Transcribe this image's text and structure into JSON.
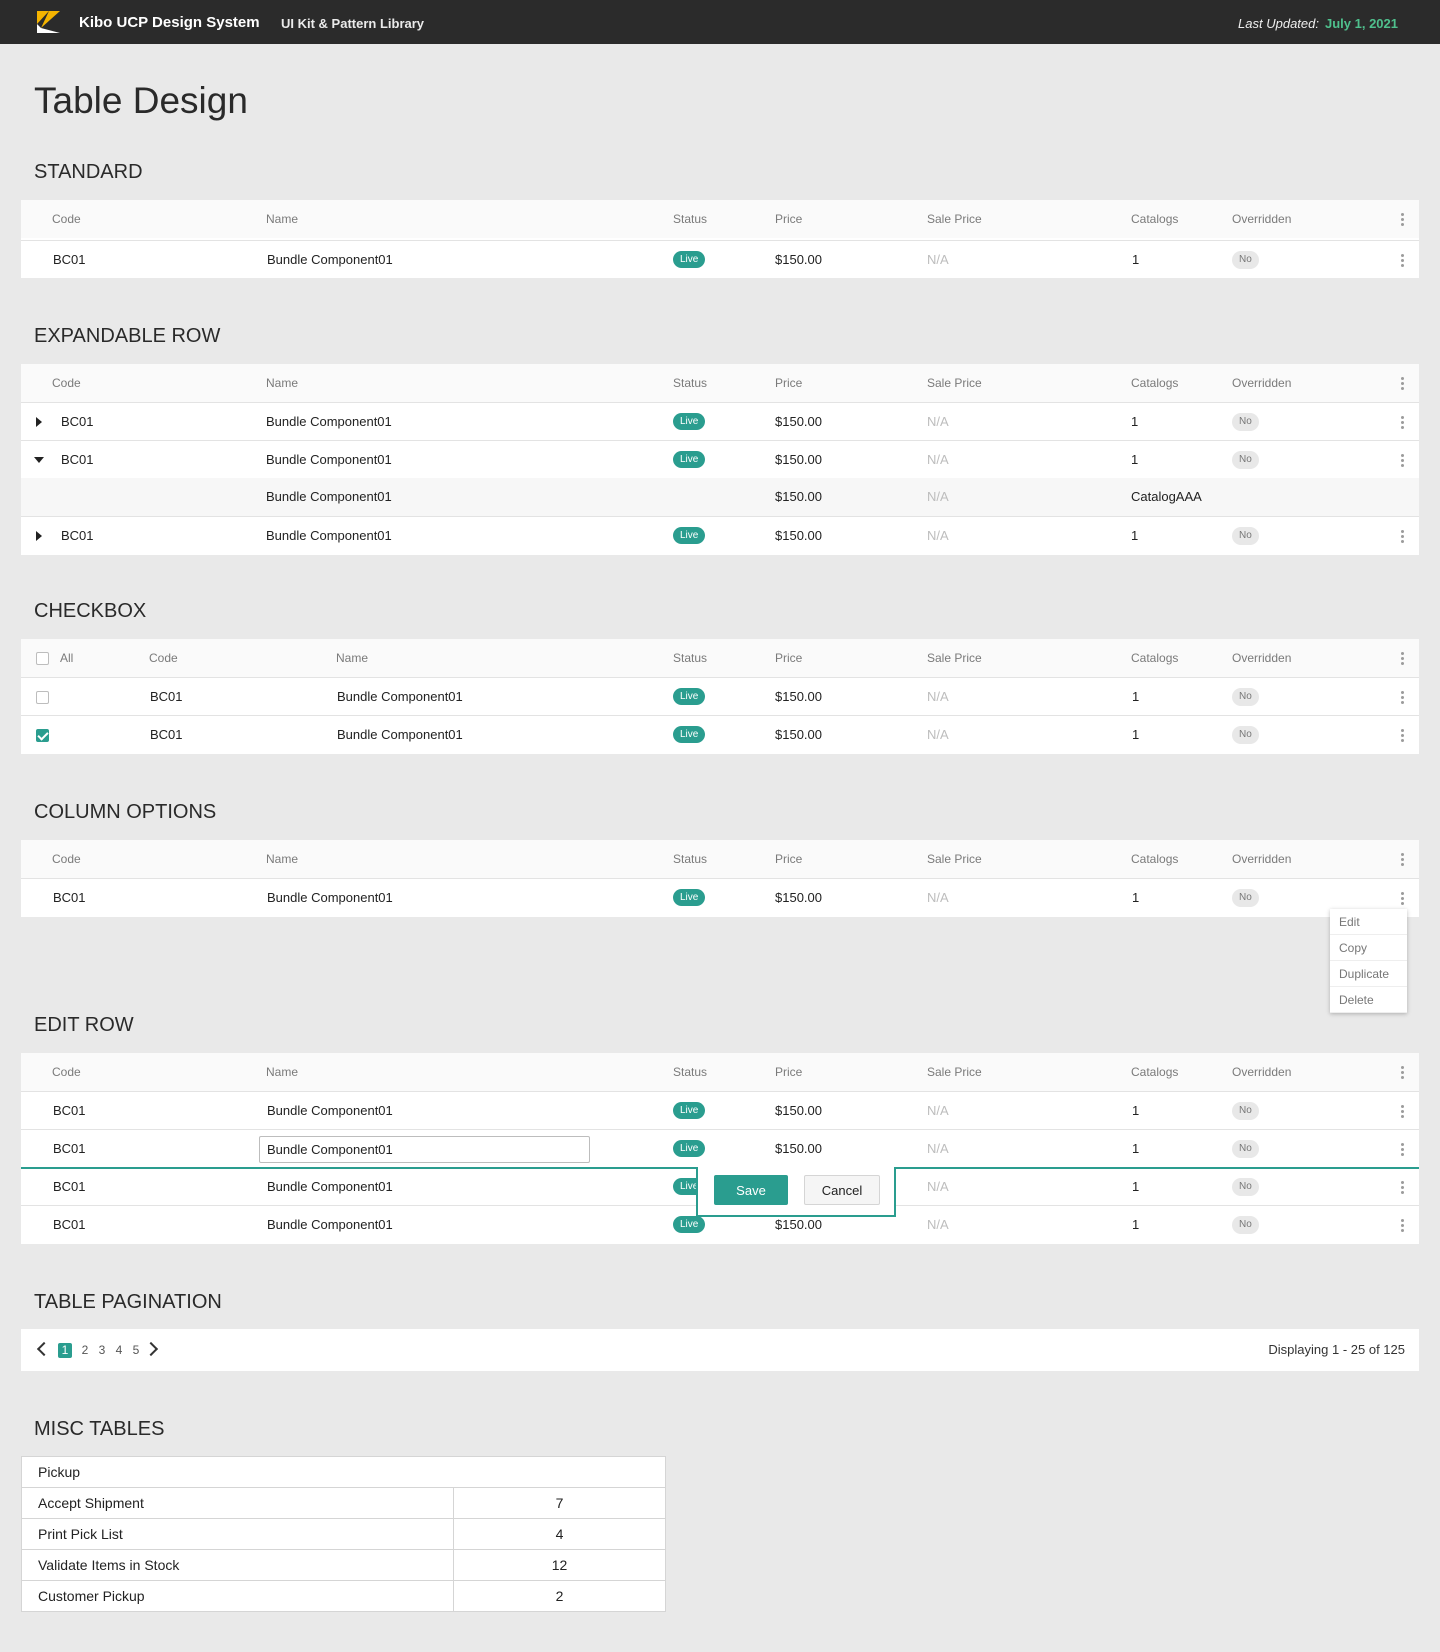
{
  "header": {
    "brand": "Kibo UCP Design System",
    "subtitle": "UI Kit & Pattern Library",
    "last_updated_label": "Last Updated:",
    "last_updated_date": "July 1, 2021"
  },
  "page_title": "Table Design",
  "columns": {
    "code": "Code",
    "name": "Name",
    "status": "Status",
    "price": "Price",
    "sale_price": "Sale Price",
    "catalogs": "Catalogs",
    "overridden": "Overridden",
    "all": "All"
  },
  "sections": {
    "standard": "STANDARD",
    "expandable": "EXPANDABLE ROW",
    "checkbox": "CHECKBOX",
    "column_options": "COLUMN OPTIONS",
    "edit_row": "EDIT ROW",
    "pagination": "TABLE PAGINATION",
    "misc": "MISC TABLES"
  },
  "row": {
    "code": "BC01",
    "name": "Bundle Component01",
    "status": "Live",
    "price": "$150.00",
    "sale_price": "N/A",
    "catalogs": "1",
    "overridden": "No"
  },
  "expanded_detail": {
    "name": "Bundle Component01",
    "price": "$150.00",
    "sale_price": "N/A",
    "catalogs": "CatalogAAA"
  },
  "checkbox_rows": [
    {
      "checked": false
    },
    {
      "checked": true
    }
  ],
  "row_menu": {
    "edit": "Edit",
    "copy": "Copy",
    "duplicate": "Duplicate",
    "delete": "Delete"
  },
  "edit": {
    "input_value": "Bundle Component01",
    "save": "Save",
    "cancel": "Cancel"
  },
  "pagination": {
    "pages": [
      "1",
      "2",
      "3",
      "4",
      "5"
    ],
    "current": "1",
    "info": "Displaying 1 - 25 of 125"
  },
  "misc_table": {
    "header": "Pickup",
    "rows": [
      {
        "label": "Accept Shipment",
        "value": "7"
      },
      {
        "label": "Print Pick List",
        "value": "4"
      },
      {
        "label": "Validate Items in Stock",
        "value": "12"
      },
      {
        "label": "Customer Pickup",
        "value": "2"
      }
    ]
  },
  "colors": {
    "topbar": "#2b2b2b",
    "accent": "#2a9d8f",
    "date_green": "#4fc08d",
    "page_background": "#e9e9e9"
  }
}
